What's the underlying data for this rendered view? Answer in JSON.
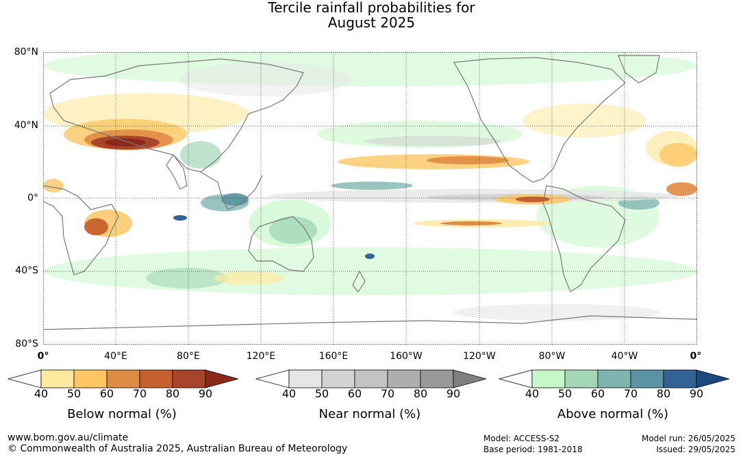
{
  "title": {
    "line1": "Tercile rainfall probabilities for",
    "line2": "August 2025"
  },
  "map": {
    "lat_labels": [
      "80°N",
      "40°N",
      "0°",
      "40°S",
      "80°S"
    ],
    "lon_labels": [
      "0°",
      "40°E",
      "80°E",
      "120°E",
      "160°E",
      "160°W",
      "120°W",
      "80°W",
      "40°W",
      "0°"
    ],
    "ocean_color": "#ffffff"
  },
  "legends": [
    {
      "caption": "Below normal (%)",
      "ticks": [
        "40",
        "50",
        "60",
        "70",
        "80",
        "90"
      ],
      "colors": [
        "#ffffff",
        "#fee99f",
        "#fec764",
        "#e08b44",
        "#c85f2e",
        "#a8442a",
        "#8b2a1c"
      ]
    },
    {
      "caption": "Near normal (%)",
      "ticks": [
        "40",
        "50",
        "60",
        "70",
        "80",
        "90"
      ],
      "colors": [
        "#ffffff",
        "#e6e6e6",
        "#d3d3d3",
        "#c3c3c3",
        "#aeaeae",
        "#999999",
        "#808080"
      ]
    },
    {
      "caption": "Above normal (%)",
      "ticks": [
        "40",
        "50",
        "60",
        "70",
        "80",
        "90"
      ],
      "colors": [
        "#ffffff",
        "#c8f8ca",
        "#a3d7b8",
        "#7fb5b0",
        "#5a93a1",
        "#336394",
        "#1c4a7f"
      ]
    }
  ],
  "footer": {
    "website": "www.bom.gov.au/climate",
    "copyright": "© Commonwealth of Australia 2025, Australian Bureau of Meteorology",
    "model": "Model: ACCESS-S2",
    "base_period": "Base period: 1981-2018",
    "model_run": "Model run: 26/05/2025",
    "issued": "Issued: 29/05/2025"
  }
}
